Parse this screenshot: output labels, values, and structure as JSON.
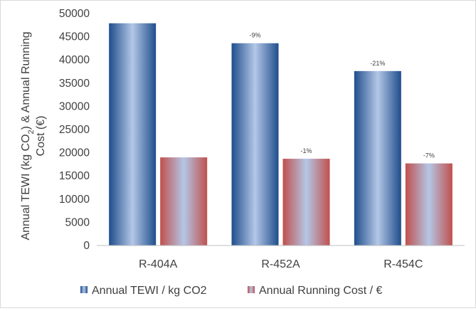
{
  "chart_data": {
    "type": "bar",
    "categories": [
      "R-404A",
      "R-452A",
      "R-454C"
    ],
    "series": [
      {
        "name": "Annual TEWI / kg CO2",
        "values": [
          47900,
          43600,
          37600
        ],
        "labels": [
          "",
          "-9%",
          "-21%"
        ],
        "color": "#1f4e8c"
      },
      {
        "name": "Annual Running Cost / €",
        "values": [
          19000,
          18700,
          17700
        ],
        "labels": [
          "",
          "-1%",
          "-7%"
        ],
        "color": "#c0504d"
      }
    ],
    "ylabel_line1_pre": "Annual TEWI (kg CO",
    "ylabel_line1_sub": "2",
    "ylabel_line1_post": ") & Annual Running",
    "ylabel_line2": "Cost (€)",
    "ylim": [
      0,
      50000
    ],
    "yticks": [
      0,
      5000,
      10000,
      15000,
      20000,
      25000,
      30000,
      35000,
      40000,
      45000,
      50000
    ],
    "grid": false,
    "legend": "bottom"
  }
}
